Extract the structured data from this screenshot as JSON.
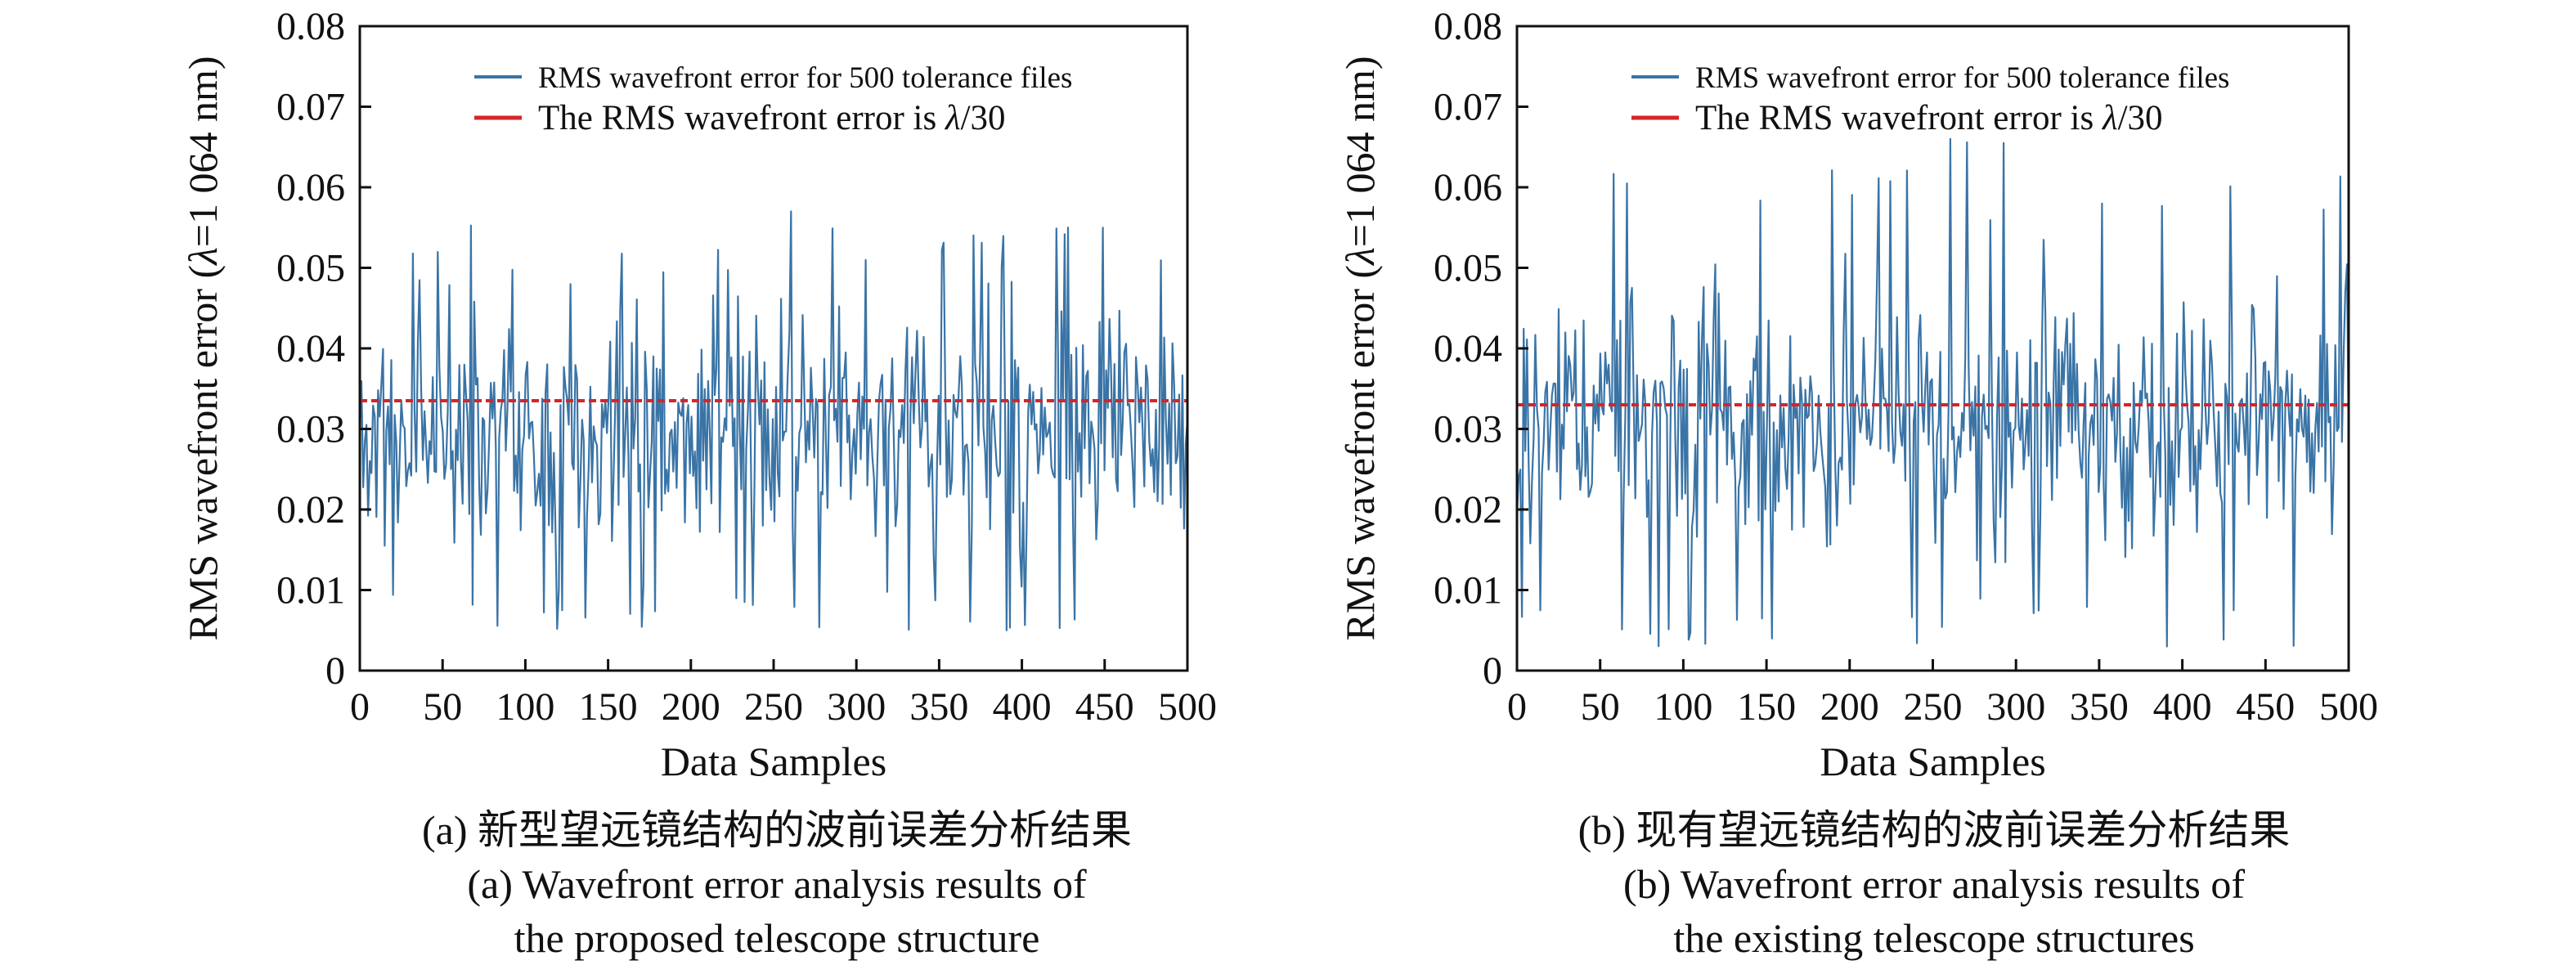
{
  "colors": {
    "series": "#3a74a6",
    "threshold": "#d3262a",
    "axis": "#111111"
  },
  "chart_data": [
    {
      "type": "line",
      "xlabel": "Data Samples",
      "ylabel_prefix": "RMS wavefront error (",
      "ylabel_lambda": "λ",
      "ylabel_suffix": "=1 064 nm)",
      "xlim": [
        0,
        500
      ],
      "ylim": [
        0,
        0.08
      ],
      "xticks": [
        "0",
        "50",
        "100",
        "150",
        "200",
        "250",
        "300",
        "350",
        "400",
        "450",
        "500"
      ],
      "yticks": [
        "0",
        "0.01",
        "0.02",
        "0.03",
        "0.04",
        "0.05",
        "0.06",
        "0.07",
        "0.08"
      ],
      "legend": "top-right",
      "grid": false,
      "series": [
        {
          "name": "RMS wavefront error for 500 tolerance files",
          "style": "line",
          "n": 500,
          "min": 0.005,
          "max": 0.057,
          "typical_range": [
            0.01,
            0.045
          ]
        },
        {
          "name_prefix": "The RMS wavefront error is ",
          "name_lambda": "λ",
          "name_suffix": "/30",
          "style": "dashed",
          "value": 0.0335
        }
      ],
      "caption_cn": "(a) 新型望远镜结构的波前误差分析结果",
      "caption_en_1": "(a) Wavefront error analysis results of",
      "caption_en_2": "the proposed telescope structure"
    },
    {
      "type": "line",
      "xlabel": "Data Samples",
      "ylabel_prefix": "RMS wavefront error (",
      "ylabel_lambda": "λ",
      "ylabel_suffix": "=1 064 nm)",
      "xlim": [
        0,
        500
      ],
      "ylim": [
        0,
        0.08
      ],
      "xticks": [
        "0",
        "50",
        "100",
        "150",
        "200",
        "250",
        "300",
        "350",
        "400",
        "450",
        "500"
      ],
      "yticks": [
        "0",
        "0.01",
        "0.02",
        "0.03",
        "0.04",
        "0.05",
        "0.06",
        "0.07",
        "0.08"
      ],
      "legend": "top-right",
      "grid": false,
      "series": [
        {
          "name": "RMS wavefront error for 500 tolerance files",
          "style": "line",
          "n": 500,
          "min": 0.003,
          "max": 0.066,
          "typical_range": [
            0.01,
            0.05
          ]
        },
        {
          "name_prefix": "The RMS wavefront error is ",
          "name_lambda": "λ",
          "name_suffix": "/30",
          "style": "dashed",
          "value": 0.033
        }
      ],
      "caption_cn": "(b) 现有望远镜结构的波前误差分析结果",
      "caption_en_1": "(b) Wavefront error analysis results of",
      "caption_en_2": "the existing telescope structures"
    }
  ]
}
